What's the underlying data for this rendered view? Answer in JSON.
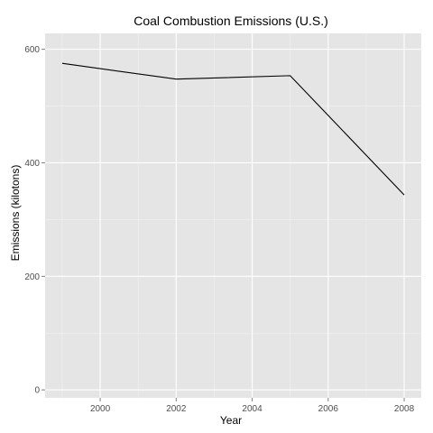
{
  "chart_data": {
    "type": "line",
    "title": "Coal Combustion Emissions (U.S.)",
    "xlabel": "Year",
    "ylabel": "Emissions (kilotons)",
    "x": [
      1999,
      2002,
      2005,
      2008
    ],
    "series": [
      {
        "values": [
          575.2,
          547.4,
          553.5,
          343.4
        ],
        "color": "#000000"
      }
    ],
    "xlim": [
      1998.55,
      2008.45
    ],
    "ylim": [
      -14,
      628
    ],
    "x_ticks": [
      2000,
      2002,
      2004,
      2006,
      2008
    ],
    "x_tick_labels": [
      "2000",
      "2002",
      "2004",
      "2006",
      "2008"
    ],
    "y_ticks": [
      0,
      200,
      400,
      600
    ],
    "y_tick_labels": [
      "0",
      "200",
      "400",
      "600"
    ],
    "grid": true,
    "panel_color": "#e5e5e5",
    "grid_color": "#ffffff"
  }
}
